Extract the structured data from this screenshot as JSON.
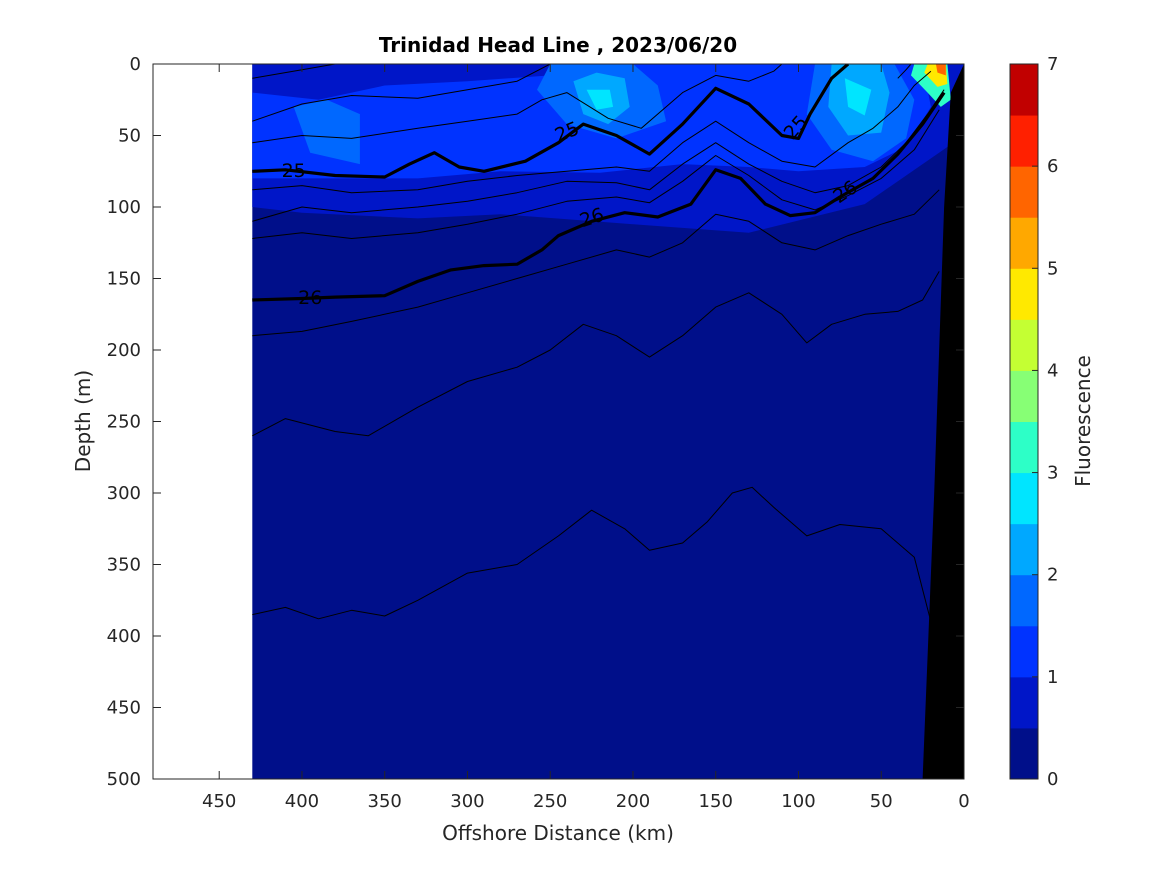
{
  "chart_data": {
    "type": "heatmap",
    "title": "Trinidad Head Line , 2023/06/20",
    "xlabel": "Offshore Distance (km)",
    "ylabel": "Depth (m)",
    "xlim": [
      490,
      0
    ],
    "ylim": [
      0,
      500
    ],
    "x_reversed": true,
    "y_reversed": true,
    "x_ticks": [
      450,
      400,
      350,
      300,
      250,
      200,
      150,
      100,
      50,
      0
    ],
    "y_ticks": [
      0,
      50,
      100,
      150,
      200,
      250,
      300,
      350,
      400,
      450,
      500
    ],
    "data_extent_km": [
      430,
      0
    ],
    "colorbar": {
      "label": "Fluorescence",
      "range": [
        0,
        7
      ],
      "ticks": [
        0,
        1,
        2,
        3,
        4,
        5,
        6,
        7
      ],
      "step": 0.5,
      "colors": [
        "#000f8a",
        "#0016c8",
        "#0033ff",
        "#0068ff",
        "#00a8ff",
        "#00e5ff",
        "#2dffc7",
        "#87ff75",
        "#c4ff33",
        "#ffe900",
        "#ffa800",
        "#ff6500",
        "#ff2000",
        "#c10000"
      ]
    },
    "fluorescence_regions": [
      {
        "level": 0.5,
        "points": [
          [
            430,
            0
          ],
          [
            0,
            0
          ],
          [
            0,
            50
          ],
          [
            60,
            98
          ],
          [
            130,
            118
          ],
          [
            200,
            112
          ],
          [
            280,
            105
          ],
          [
            330,
            108
          ],
          [
            400,
            104
          ],
          [
            430,
            100
          ]
        ]
      },
      {
        "level": 1.0,
        "points": [
          [
            430,
            0
          ],
          [
            25,
            0
          ],
          [
            20,
            30
          ],
          [
            35,
            58
          ],
          [
            60,
            72
          ],
          [
            100,
            75
          ],
          [
            130,
            72
          ],
          [
            170,
            70
          ],
          [
            220,
            76
          ],
          [
            280,
            75
          ],
          [
            330,
            80
          ],
          [
            380,
            80
          ],
          [
            430,
            80
          ],
          [
            430,
            20
          ],
          [
            390,
            25
          ],
          [
            350,
            15
          ],
          [
            300,
            12
          ],
          [
            250,
            8
          ],
          [
            210,
            0
          ]
        ]
      },
      {
        "level": 1.5,
        "points": [
          [
            385,
            25
          ],
          [
            365,
            35
          ],
          [
            365,
            70
          ],
          [
            395,
            62
          ],
          [
            405,
            30
          ]
        ]
      },
      {
        "level": 1.5,
        "points": [
          [
            250,
            0
          ],
          [
            258,
            18
          ],
          [
            240,
            42
          ],
          [
            210,
            52
          ],
          [
            180,
            40
          ],
          [
            185,
            15
          ],
          [
            200,
            0
          ]
        ]
      },
      {
        "level": 1.5,
        "points": [
          [
            90,
            0
          ],
          [
            95,
            35
          ],
          [
            80,
            60
          ],
          [
            55,
            68
          ],
          [
            35,
            52
          ],
          [
            30,
            25
          ],
          [
            42,
            0
          ]
        ]
      },
      {
        "level": 2.0,
        "points": [
          [
            236,
            12
          ],
          [
            230,
            35
          ],
          [
            215,
            42
          ],
          [
            202,
            30
          ],
          [
            205,
            10
          ],
          [
            222,
            6
          ]
        ]
      },
      {
        "level": 2.0,
        "points": [
          [
            80,
            0
          ],
          [
            82,
            30
          ],
          [
            70,
            50
          ],
          [
            50,
            48
          ],
          [
            45,
            20
          ],
          [
            50,
            0
          ]
        ]
      },
      {
        "level": 2.5,
        "points": [
          [
            228,
            18
          ],
          [
            222,
            32
          ],
          [
            212,
            30
          ],
          [
            214,
            18
          ]
        ]
      },
      {
        "level": 2.5,
        "points": [
          [
            72,
            10
          ],
          [
            70,
            30
          ],
          [
            60,
            36
          ],
          [
            56,
            18
          ]
        ]
      },
      {
        "level": 3.0,
        "points": [
          [
            30,
            0
          ],
          [
            10,
            0
          ],
          [
            8,
            25
          ],
          [
            14,
            30
          ],
          [
            22,
            20
          ],
          [
            32,
            8
          ]
        ]
      },
      {
        "level": 4.5,
        "points": [
          [
            22,
            0
          ],
          [
            11,
            0
          ],
          [
            10,
            14
          ],
          [
            16,
            16
          ],
          [
            24,
            6
          ]
        ]
      },
      {
        "level": 5.5,
        "points": [
          [
            17,
            0
          ],
          [
            11,
            0
          ],
          [
            11,
            8
          ],
          [
            16,
            6
          ]
        ]
      }
    ],
    "density_contours": [
      {
        "points": [
          [
            430,
            10
          ],
          [
            400,
            4
          ],
          [
            380,
            0
          ]
        ]
      },
      {
        "points": [
          [
            430,
            40
          ],
          [
            400,
            28
          ],
          [
            370,
            22
          ],
          [
            330,
            24
          ],
          [
            300,
            18
          ],
          [
            270,
            12
          ],
          [
            250,
            0
          ]
        ]
      },
      {
        "points": [
          [
            430,
            55
          ],
          [
            400,
            50
          ],
          [
            370,
            52
          ],
          [
            330,
            45
          ],
          [
            300,
            40
          ],
          [
            270,
            35
          ],
          [
            255,
            25
          ],
          [
            240,
            20
          ],
          [
            215,
            38
          ],
          [
            195,
            45
          ],
          [
            170,
            20
          ],
          [
            150,
            8
          ],
          [
            130,
            12
          ],
          [
            115,
            5
          ],
          [
            110,
            0
          ]
        ]
      },
      {
        "level": 25,
        "label": "25",
        "bold": true,
        "points": [
          [
            430,
            75
          ],
          [
            410,
            74
          ],
          [
            380,
            78
          ],
          [
            350,
            79
          ],
          [
            335,
            70
          ],
          [
            320,
            62
          ],
          [
            305,
            72
          ],
          [
            290,
            75
          ],
          [
            265,
            68
          ],
          [
            245,
            55
          ],
          [
            230,
            42
          ],
          [
            210,
            50
          ],
          [
            190,
            63
          ],
          [
            170,
            42
          ],
          [
            150,
            17
          ],
          [
            130,
            28
          ],
          [
            110,
            50
          ],
          [
            100,
            52
          ],
          [
            93,
            35
          ],
          [
            80,
            10
          ],
          [
            70,
            0
          ]
        ]
      },
      {
        "points": [
          [
            430,
            88
          ],
          [
            400,
            85
          ],
          [
            370,
            90
          ],
          [
            330,
            88
          ],
          [
            300,
            82
          ],
          [
            270,
            78
          ],
          [
            240,
            75
          ],
          [
            210,
            72
          ],
          [
            190,
            75
          ],
          [
            170,
            55
          ],
          [
            150,
            40
          ],
          [
            130,
            55
          ],
          [
            110,
            68
          ],
          [
            90,
            72
          ],
          [
            70,
            55
          ],
          [
            55,
            45
          ],
          [
            40,
            30
          ],
          [
            30,
            15
          ],
          [
            20,
            5
          ]
        ]
      },
      {
        "points": [
          [
            430,
            110
          ],
          [
            400,
            100
          ],
          [
            370,
            104
          ],
          [
            330,
            100
          ],
          [
            300,
            96
          ],
          [
            270,
            90
          ],
          [
            240,
            82
          ],
          [
            210,
            83
          ],
          [
            190,
            88
          ],
          [
            170,
            70
          ],
          [
            150,
            55
          ],
          [
            130,
            70
          ],
          [
            110,
            82
          ],
          [
            90,
            90
          ],
          [
            70,
            85
          ],
          [
            50,
            72
          ],
          [
            35,
            55
          ],
          [
            22,
            35
          ],
          [
            12,
            18
          ]
        ]
      },
      {
        "points": [
          [
            430,
            122
          ],
          [
            400,
            118
          ],
          [
            370,
            122
          ],
          [
            330,
            118
          ],
          [
            300,
            112
          ],
          [
            270,
            105
          ],
          [
            240,
            96
          ],
          [
            210,
            93
          ],
          [
            190,
            97
          ],
          [
            170,
            82
          ],
          [
            150,
            64
          ],
          [
            130,
            78
          ],
          [
            110,
            95
          ],
          [
            90,
            102
          ],
          [
            70,
            92
          ],
          [
            50,
            80
          ],
          [
            30,
            60
          ],
          [
            15,
            32
          ]
        ]
      },
      {
        "level": 26,
        "label": "26",
        "bold": true,
        "points": [
          [
            430,
            165
          ],
          [
            400,
            164
          ],
          [
            380,
            163
          ],
          [
            350,
            162
          ],
          [
            330,
            152
          ],
          [
            310,
            144
          ],
          [
            290,
            141
          ],
          [
            270,
            140
          ],
          [
            255,
            130
          ],
          [
            245,
            120
          ],
          [
            225,
            110
          ],
          [
            205,
            104
          ],
          [
            185,
            107
          ],
          [
            165,
            98
          ],
          [
            150,
            74
          ],
          [
            135,
            80
          ],
          [
            120,
            98
          ],
          [
            105,
            106
          ],
          [
            90,
            104
          ],
          [
            75,
            93
          ],
          [
            55,
            80
          ],
          [
            40,
            63
          ],
          [
            25,
            42
          ],
          [
            12,
            20
          ]
        ]
      },
      {
        "points": [
          [
            430,
            190
          ],
          [
            400,
            187
          ],
          [
            370,
            180
          ],
          [
            330,
            170
          ],
          [
            300,
            160
          ],
          [
            270,
            150
          ],
          [
            240,
            140
          ],
          [
            210,
            130
          ],
          [
            190,
            135
          ],
          [
            170,
            125
          ],
          [
            150,
            105
          ],
          [
            130,
            110
          ],
          [
            110,
            125
          ],
          [
            90,
            130
          ],
          [
            70,
            120
          ],
          [
            50,
            112
          ],
          [
            30,
            105
          ],
          [
            15,
            88
          ]
        ]
      },
      {
        "points": [
          [
            430,
            260
          ],
          [
            410,
            248
          ],
          [
            380,
            257
          ],
          [
            360,
            260
          ],
          [
            330,
            240
          ],
          [
            300,
            222
          ],
          [
            270,
            212
          ],
          [
            250,
            200
          ],
          [
            230,
            182
          ],
          [
            210,
            190
          ],
          [
            190,
            205
          ],
          [
            170,
            190
          ],
          [
            150,
            170
          ],
          [
            130,
            160
          ],
          [
            110,
            175
          ],
          [
            95,
            195
          ],
          [
            80,
            182
          ],
          [
            60,
            175
          ],
          [
            40,
            173
          ],
          [
            25,
            165
          ],
          [
            15,
            145
          ]
        ]
      },
      {
        "points": [
          [
            430,
            385
          ],
          [
            410,
            380
          ],
          [
            390,
            388
          ],
          [
            370,
            382
          ],
          [
            350,
            386
          ],
          [
            330,
            375
          ],
          [
            300,
            356
          ],
          [
            270,
            350
          ],
          [
            245,
            330
          ],
          [
            225,
            312
          ],
          [
            205,
            325
          ],
          [
            190,
            340
          ],
          [
            170,
            335
          ],
          [
            155,
            320
          ],
          [
            140,
            300
          ],
          [
            128,
            296
          ],
          [
            115,
            310
          ],
          [
            95,
            330
          ],
          [
            75,
            322
          ],
          [
            50,
            325
          ],
          [
            30,
            345
          ],
          [
            20,
            390
          ]
        ]
      },
      {
        "points": [
          [
            40,
            10
          ],
          [
            35,
            4
          ],
          [
            32,
            0
          ]
        ]
      }
    ],
    "contour_labels": [
      {
        "text": "25",
        "x": 405,
        "y": 74,
        "angle": 0
      },
      {
        "text": "25",
        "x": 240,
        "y": 47,
        "angle": -22
      },
      {
        "text": "25",
        "x": 102,
        "y": 44,
        "angle": -48
      },
      {
        "text": "26",
        "x": 395,
        "y": 163,
        "angle": 0
      },
      {
        "text": "26",
        "x": 225,
        "y": 107,
        "angle": -18
      },
      {
        "text": "26",
        "x": 72,
        "y": 89,
        "angle": -34
      }
    ],
    "seafloor": [
      [
        25,
        500
      ],
      [
        18,
        300
      ],
      [
        12,
        100
      ],
      [
        8,
        20
      ],
      [
        0,
        0
      ],
      [
        0,
        500
      ]
    ],
    "grid": false,
    "legend": "none"
  }
}
